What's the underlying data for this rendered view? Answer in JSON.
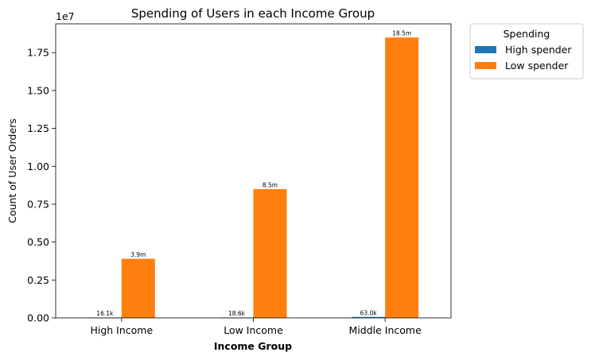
{
  "chart_data": {
    "type": "bar",
    "title": "Spending of Users in each Income Group",
    "xlabel": "Income Group",
    "ylabel": "Count of User Orders",
    "y_offset_text": "1e7",
    "y_scale_factor": 10000000,
    "categories": [
      "High Income",
      "Low Income",
      "Middle Income"
    ],
    "series": [
      {
        "name": "High spender",
        "color": "#1f77b4",
        "values": [
          16100,
          18600,
          63000
        ],
        "labels": [
          "16.1k",
          "18.6k",
          "63.0k"
        ]
      },
      {
        "name": "Low spender",
        "color": "#ff7f0e",
        "values": [
          3900000,
          8500000,
          18500000
        ],
        "labels": [
          "3.9m",
          "8.5m",
          "18.5m"
        ]
      }
    ],
    "ylim": [
      0,
      19400000
    ],
    "yticks": [
      0,
      2500000,
      5000000,
      7500000,
      10000000,
      12500000,
      15000000,
      17500000
    ],
    "ytick_labels": [
      "0.00",
      "0.25",
      "0.50",
      "0.75",
      "1.00",
      "1.25",
      "1.50",
      "1.75"
    ],
    "legend": {
      "title": "Spending",
      "placement": "outside-top-right"
    },
    "grid": false
  }
}
